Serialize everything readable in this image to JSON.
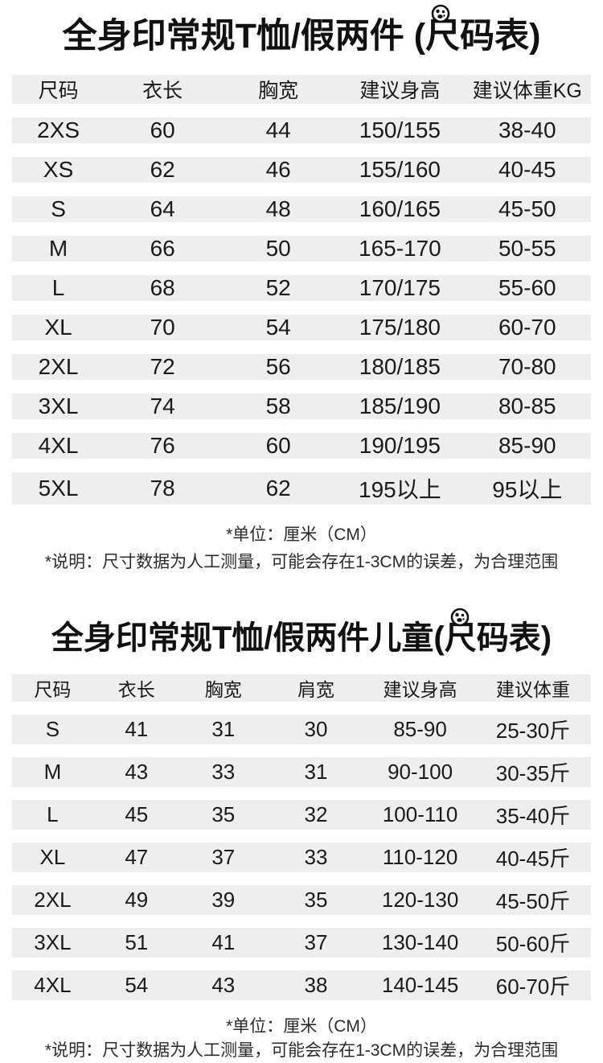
{
  "colors": {
    "background": "#ffffff",
    "row_band": "#eeeeee",
    "text": "#1a1a1a"
  },
  "badge_icon": "ball-logo-icon",
  "adult": {
    "title_pre": "全身印常规T恤/假两件 (",
    "title_badge_char": "尺",
    "title_post": "码表)",
    "columns": [
      "尺码",
      "衣长",
      "胸宽",
      "建议身高",
      "建议体重KG"
    ],
    "rows": [
      [
        "2XS",
        "60",
        "44",
        "150/155",
        "38-40"
      ],
      [
        "XS",
        "62",
        "46",
        "155/160",
        "40-45"
      ],
      [
        "S",
        "64",
        "48",
        "160/165",
        "45-50"
      ],
      [
        "M",
        "66",
        "50",
        "165-170",
        "50-55"
      ],
      [
        "L",
        "68",
        "52",
        "170/175",
        "55-60"
      ],
      [
        "XL",
        "70",
        "54",
        "175/180",
        "60-70"
      ],
      [
        "2XL",
        "72",
        "56",
        "180/185",
        "70-80"
      ],
      [
        "3XL",
        "74",
        "58",
        "185/190",
        "80-85"
      ],
      [
        "4XL",
        "76",
        "60",
        "190/195",
        "85-90"
      ],
      [
        "5XL",
        "78",
        "62",
        "195以上",
        "95以上"
      ]
    ],
    "note_unit": "*单位：厘米（CM）",
    "note_disclaimer": "*说明：尺寸数据为人工测量，可能会存在1-3CM的误差，为合理范围"
  },
  "kids": {
    "title_pre": "全身印常规T恤/假两件儿童(",
    "title_badge_char": "尺",
    "title_post": "码表)",
    "columns": [
      "尺码",
      "衣长",
      "胸宽",
      "肩宽",
      "建议身高",
      "建议体重"
    ],
    "rows": [
      [
        "S",
        "41",
        "31",
        "30",
        "85-90",
        "25-30斤"
      ],
      [
        "M",
        "43",
        "33",
        "31",
        "90-100",
        "30-35斤"
      ],
      [
        "L",
        "45",
        "35",
        "32",
        "100-110",
        "35-40斤"
      ],
      [
        "XL",
        "47",
        "37",
        "33",
        "110-120",
        "40-45斤"
      ],
      [
        "2XL",
        "49",
        "39",
        "35",
        "120-130",
        "45-50斤"
      ],
      [
        "3XL",
        "51",
        "41",
        "37",
        "130-140",
        "50-60斤"
      ],
      [
        "4XL",
        "54",
        "43",
        "38",
        "140-145",
        "60-70斤"
      ]
    ],
    "note_unit": "*单位：厘米（CM）",
    "note_disclaimer": "*说明：尺寸数据为人工测量，可能会存在1-3CM的误差，为合理范围"
  }
}
